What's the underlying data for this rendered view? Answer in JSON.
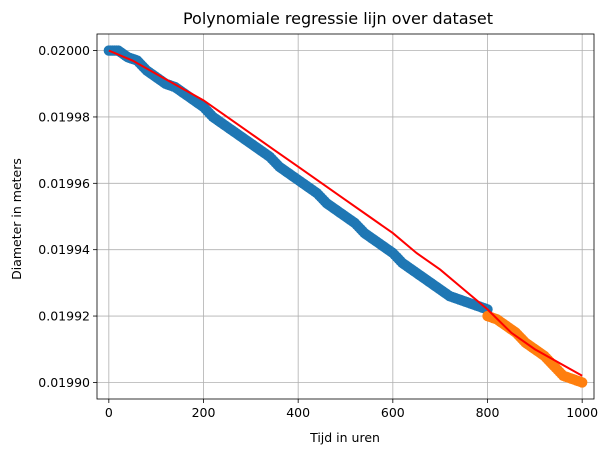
{
  "chart_data": {
    "type": "scatter",
    "title": "Polynomiale regressie lijn over dataset",
    "xlabel": "Tijd in uren",
    "ylabel": "Diameter in meters",
    "xlim": [
      -25,
      1025
    ],
    "ylim": [
      0.019895,
      0.020005
    ],
    "grid": true,
    "x_ticks": [
      0,
      200,
      400,
      600,
      800,
      1000
    ],
    "x_tick_labels": [
      "0",
      "200",
      "400",
      "600",
      "800",
      "1000"
    ],
    "y_ticks": [
      0.0199,
      0.01992,
      0.01994,
      0.01996,
      0.01998,
      0.02
    ],
    "y_tick_labels": [
      "0.01990",
      "0.01992",
      "0.01994",
      "0.01996",
      "0.01998",
      "0.02000"
    ],
    "series": [
      {
        "kind": "scatter",
        "color": "#1f77b4",
        "points": [
          [
            0,
            0.02
          ],
          [
            20,
            0.02
          ],
          [
            40,
            0.019998
          ],
          [
            60,
            0.019997
          ],
          [
            80,
            0.019994
          ],
          [
            100,
            0.019992
          ],
          [
            120,
            0.01999
          ],
          [
            140,
            0.019989
          ],
          [
            160,
            0.019987
          ],
          [
            180,
            0.019985
          ],
          [
            200,
            0.019983
          ],
          [
            220,
            0.01998
          ],
          [
            240,
            0.019978
          ],
          [
            260,
            0.019976
          ],
          [
            280,
            0.019974
          ],
          [
            300,
            0.019972
          ],
          [
            320,
            0.01997
          ],
          [
            340,
            0.019968
          ],
          [
            360,
            0.019965
          ],
          [
            380,
            0.019963
          ],
          [
            400,
            0.019961
          ],
          [
            420,
            0.019959
          ],
          [
            440,
            0.019957
          ],
          [
            460,
            0.019954
          ],
          [
            480,
            0.019952
          ],
          [
            500,
            0.01995
          ],
          [
            520,
            0.019948
          ],
          [
            540,
            0.019945
          ],
          [
            560,
            0.019943
          ],
          [
            580,
            0.019941
          ],
          [
            600,
            0.019939
          ],
          [
            620,
            0.019936
          ],
          [
            640,
            0.019934
          ],
          [
            660,
            0.019932
          ],
          [
            680,
            0.01993
          ],
          [
            700,
            0.019928
          ],
          [
            720,
            0.019926
          ],
          [
            740,
            0.019925
          ],
          [
            760,
            0.019924
          ],
          [
            780,
            0.019923
          ],
          [
            800,
            0.019922
          ]
        ]
      },
      {
        "kind": "scatter",
        "color": "#ff7f0e",
        "points": [
          [
            800,
            0.01992
          ],
          [
            820,
            0.019919
          ],
          [
            840,
            0.019917
          ],
          [
            860,
            0.019915
          ],
          [
            880,
            0.019912
          ],
          [
            900,
            0.01991
          ],
          [
            920,
            0.019908
          ],
          [
            940,
            0.019905
          ],
          [
            960,
            0.019902
          ],
          [
            980,
            0.019901
          ],
          [
            1000,
            0.0199
          ]
        ]
      },
      {
        "kind": "line",
        "color": "#ff0000",
        "points": [
          [
            0,
            0.02
          ],
          [
            50,
            0.019997
          ],
          [
            100,
            0.019993
          ],
          [
            150,
            0.019989
          ],
          [
            200,
            0.019985
          ],
          [
            250,
            0.01998
          ],
          [
            300,
            0.019975
          ],
          [
            350,
            0.01997
          ],
          [
            400,
            0.019965
          ],
          [
            450,
            0.01996
          ],
          [
            500,
            0.019955
          ],
          [
            550,
            0.01995
          ],
          [
            600,
            0.019945
          ],
          [
            650,
            0.019939
          ],
          [
            700,
            0.019934
          ],
          [
            750,
            0.019928
          ],
          [
            800,
            0.019922
          ],
          [
            850,
            0.019915
          ],
          [
            900,
            0.01991
          ],
          [
            950,
            0.019906
          ],
          [
            1000,
            0.019902
          ]
        ]
      }
    ]
  }
}
